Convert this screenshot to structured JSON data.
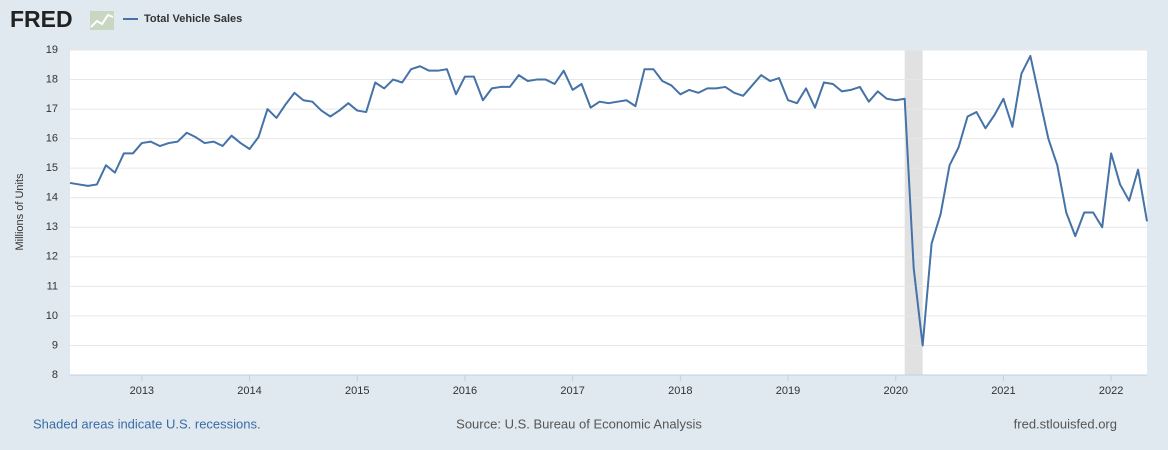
{
  "logo": "FRED",
  "chart_data": {
    "type": "line",
    "y_label": "Millions of Units",
    "x": [
      2012.333,
      2012.417,
      2012.5,
      2012.583,
      2012.667,
      2012.75,
      2012.833,
      2012.917,
      2013,
      2013.083,
      2013.167,
      2013.25,
      2013.333,
      2013.417,
      2013.5,
      2013.583,
      2013.667,
      2013.75,
      2013.833,
      2013.917,
      2014,
      2014.083,
      2014.167,
      2014.25,
      2014.333,
      2014.417,
      2014.5,
      2014.583,
      2014.667,
      2014.75,
      2014.833,
      2014.917,
      2015,
      2015.083,
      2015.167,
      2015.25,
      2015.333,
      2015.417,
      2015.5,
      2015.583,
      2015.667,
      2015.75,
      2015.833,
      2015.917,
      2016,
      2016.083,
      2016.167,
      2016.25,
      2016.333,
      2016.417,
      2016.5,
      2016.583,
      2016.667,
      2016.75,
      2016.833,
      2016.917,
      2017,
      2017.083,
      2017.167,
      2017.25,
      2017.333,
      2017.417,
      2017.5,
      2017.583,
      2017.667,
      2017.75,
      2017.833,
      2017.917,
      2018,
      2018.083,
      2018.167,
      2018.25,
      2018.333,
      2018.417,
      2018.5,
      2018.583,
      2018.667,
      2018.75,
      2018.833,
      2018.917,
      2019,
      2019.083,
      2019.167,
      2019.25,
      2019.333,
      2019.417,
      2019.5,
      2019.583,
      2019.667,
      2019.75,
      2019.833,
      2019.917,
      2020,
      2020.083,
      2020.167,
      2020.25,
      2020.333,
      2020.417,
      2020.5,
      2020.583,
      2020.667,
      2020.75,
      2020.833,
      2020.917,
      2021,
      2021.083,
      2021.167,
      2021.25,
      2021.333,
      2021.417,
      2021.5,
      2021.583,
      2021.667,
      2021.75,
      2021.833,
      2021.917,
      2022,
      2022.083,
      2022.167,
      2022.25,
      2022.333
    ],
    "series": [
      {
        "name": "Total Vehicle Sales",
        "color": "#4572a7",
        "values": [
          14.5,
          14.45,
          14.4,
          14.45,
          15.1,
          14.85,
          15.5,
          15.5,
          15.85,
          15.9,
          15.75,
          15.85,
          15.9,
          16.2,
          16.05,
          15.85,
          15.9,
          15.75,
          16.1,
          15.85,
          15.65,
          16.05,
          17.0,
          16.7,
          17.15,
          17.55,
          17.3,
          17.25,
          16.95,
          16.75,
          16.95,
          17.2,
          16.95,
          16.9,
          17.9,
          17.7,
          18.0,
          17.9,
          18.35,
          18.45,
          18.3,
          18.3,
          18.35,
          17.5,
          18.1,
          18.1,
          17.3,
          17.7,
          17.75,
          17.75,
          18.15,
          17.95,
          18.0,
          18.0,
          17.85,
          18.3,
          17.65,
          17.85,
          17.05,
          17.25,
          17.2,
          17.25,
          17.3,
          17.1,
          18.35,
          18.35,
          17.95,
          17.8,
          17.5,
          17.65,
          17.55,
          17.7,
          17.7,
          17.75,
          17.55,
          17.45,
          17.8,
          18.15,
          17.95,
          18.05,
          17.3,
          17.2,
          17.7,
          17.05,
          17.9,
          17.85,
          17.6,
          17.65,
          17.75,
          17.25,
          17.6,
          17.35,
          17.3,
          17.35,
          11.6,
          9.0,
          12.45,
          13.45,
          15.1,
          15.7,
          16.75,
          16.9,
          16.35,
          16.8,
          17.35,
          16.4,
          18.2,
          18.8,
          17.4,
          16.0,
          15.1,
          13.5,
          12.7,
          13.5,
          13.5,
          13.0,
          15.5,
          14.45,
          13.9,
          14.95,
          13.2
        ]
      }
    ],
    "xlim": [
      2012.333,
      2022.333
    ],
    "xticks": [
      2013,
      2014,
      2015,
      2016,
      2017,
      2018,
      2019,
      2020,
      2021,
      2022
    ],
    "ylim": [
      8,
      19
    ],
    "yticks": [
      8,
      9,
      10,
      11,
      12,
      13,
      14,
      15,
      16,
      17,
      18,
      19
    ],
    "grid": true,
    "recessions": [
      [
        2020.083,
        2020.25
      ]
    ],
    "recession_color": "#e1e1e1"
  },
  "footer": {
    "note": "Shaded areas indicate U.S. recessions.",
    "source": "Source: U.S. Bureau of Economic Analysis",
    "site": "fred.stlouisfed.org"
  }
}
